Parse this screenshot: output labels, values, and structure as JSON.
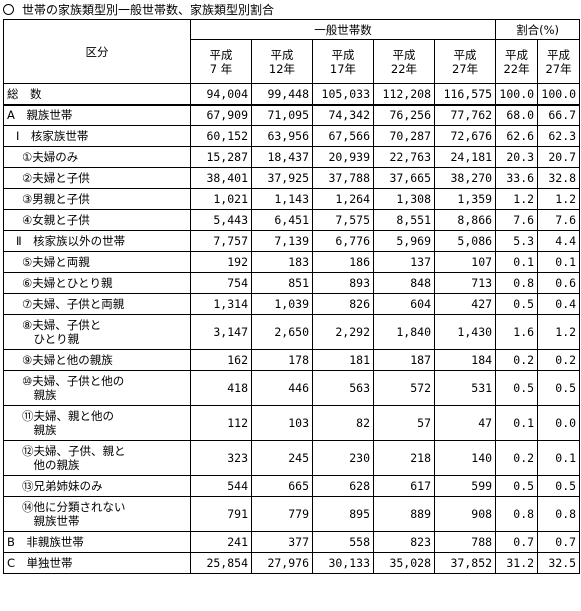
{
  "title": "世帯の家族類型別一般世帯数、家族類型別割合",
  "headers": {
    "category": "区分",
    "group_households": "一般世帯数",
    "group_ratio": "割合(%)",
    "years": [
      "平成\n7 年",
      "平成\n12年",
      "平成\n17年",
      "平成\n22年",
      "平成\n27年"
    ],
    "ratio_years": [
      "平成\n22年",
      "平成\n27年"
    ]
  },
  "rows": [
    {
      "label": "総　数",
      "indent": 0,
      "values": [
        "94,004",
        "99,448",
        "105,033",
        "112,208",
        "116,575"
      ],
      "ratios": [
        "100.0",
        "100.0"
      ]
    },
    {
      "label": "A　親族世帯",
      "indent": 0,
      "values": [
        "67,909",
        "71,095",
        "74,342",
        "76,256",
        "77,762"
      ],
      "ratios": [
        "68.0",
        "66.7"
      ]
    },
    {
      "label": "Ⅰ　核家族世帯",
      "indent": 1,
      "values": [
        "60,152",
        "63,956",
        "67,566",
        "70,287",
        "72,676"
      ],
      "ratios": [
        "62.6",
        "62.3"
      ]
    },
    {
      "label": "①夫婦のみ",
      "indent": 2,
      "values": [
        "15,287",
        "18,437",
        "20,939",
        "22,763",
        "24,181"
      ],
      "ratios": [
        "20.3",
        "20.7"
      ]
    },
    {
      "label": "②夫婦と子供",
      "indent": 2,
      "values": [
        "38,401",
        "37,925",
        "37,788",
        "37,665",
        "38,270"
      ],
      "ratios": [
        "33.6",
        "32.8"
      ]
    },
    {
      "label": "③男親と子供",
      "indent": 2,
      "values": [
        "1,021",
        "1,143",
        "1,264",
        "1,308",
        "1,359"
      ],
      "ratios": [
        "1.2",
        "1.2"
      ]
    },
    {
      "label": "④女親と子供",
      "indent": 2,
      "values": [
        "5,443",
        "6,451",
        "7,575",
        "8,551",
        "8,866"
      ],
      "ratios": [
        "7.6",
        "7.6"
      ]
    },
    {
      "label": "Ⅱ　核家族以外の世帯",
      "indent": 1,
      "values": [
        "7,757",
        "7,139",
        "6,776",
        "5,969",
        "5,086"
      ],
      "ratios": [
        "5.3",
        "4.4"
      ]
    },
    {
      "label": "⑤夫婦と両親",
      "indent": 2,
      "values": [
        "192",
        "183",
        "186",
        "137",
        "107"
      ],
      "ratios": [
        "0.1",
        "0.1"
      ]
    },
    {
      "label": "⑥夫婦とひとり親",
      "indent": 2,
      "values": [
        "754",
        "851",
        "893",
        "848",
        "713"
      ],
      "ratios": [
        "0.8",
        "0.6"
      ]
    },
    {
      "label": "⑦夫婦、子供と両親",
      "indent": 2,
      "values": [
        "1,314",
        "1,039",
        "826",
        "604",
        "427"
      ],
      "ratios": [
        "0.5",
        "0.4"
      ]
    },
    {
      "label": "⑧夫婦、子供と\n　ひとり親",
      "indent": 2,
      "values": [
        "3,147",
        "2,650",
        "2,292",
        "1,840",
        "1,430"
      ],
      "ratios": [
        "1.6",
        "1.2"
      ]
    },
    {
      "label": "⑨夫婦と他の親族",
      "indent": 2,
      "values": [
        "162",
        "178",
        "181",
        "187",
        "184"
      ],
      "ratios": [
        "0.2",
        "0.2"
      ]
    },
    {
      "label": "⑩夫婦、子供と他の\n　親族",
      "indent": 2,
      "values": [
        "418",
        "446",
        "563",
        "572",
        "531"
      ],
      "ratios": [
        "0.5",
        "0.5"
      ]
    },
    {
      "label": "⑪夫婦、親と他の\n　親族",
      "indent": 2,
      "values": [
        "112",
        "103",
        "82",
        "57",
        "47"
      ],
      "ratios": [
        "0.1",
        "0.0"
      ]
    },
    {
      "label": "⑫夫婦、子供、親と\n　他の親族",
      "indent": 2,
      "values": [
        "323",
        "245",
        "230",
        "218",
        "140"
      ],
      "ratios": [
        "0.2",
        "0.1"
      ]
    },
    {
      "label": "⑬兄弟姉妹のみ",
      "indent": 2,
      "values": [
        "544",
        "665",
        "628",
        "617",
        "599"
      ],
      "ratios": [
        "0.5",
        "0.5"
      ]
    },
    {
      "label": "⑭他に分類されない\n　親族世帯",
      "indent": 2,
      "values": [
        "791",
        "779",
        "895",
        "889",
        "908"
      ],
      "ratios": [
        "0.8",
        "0.8"
      ]
    },
    {
      "label": "B　非親族世帯",
      "indent": 0,
      "values": [
        "241",
        "377",
        "558",
        "823",
        "788"
      ],
      "ratios": [
        "0.7",
        "0.7"
      ]
    },
    {
      "label": "C　単独世帯",
      "indent": 0,
      "values": [
        "25,854",
        "27,976",
        "30,133",
        "35,028",
        "37,852"
      ],
      "ratios": [
        "31.2",
        "32.5"
      ]
    }
  ]
}
